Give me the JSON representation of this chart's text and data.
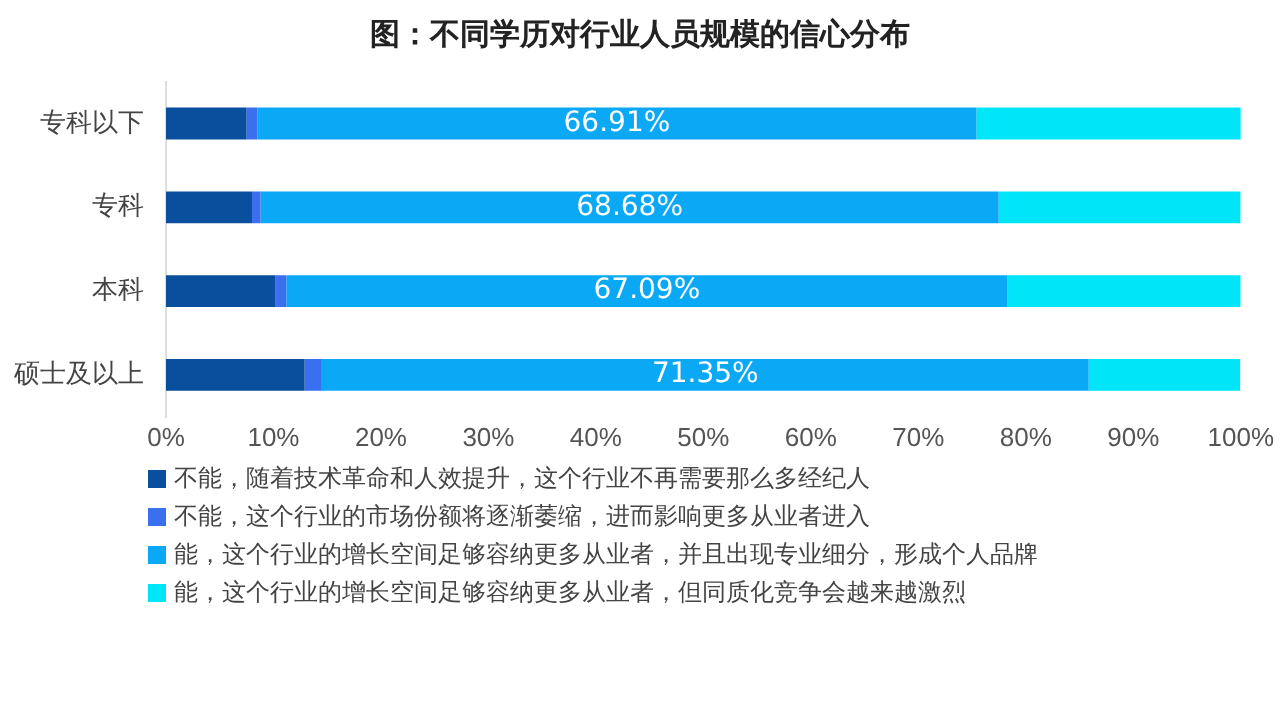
{
  "chart_data": {
    "type": "bar",
    "orientation": "horizontal",
    "stacked": true,
    "title": "图：不同学历对行业人员规模的信心分布",
    "categories": [
      "专科以下",
      "专科",
      "本科",
      "硕士及以上"
    ],
    "series": [
      {
        "name": "不能，随着技术革命和人效提升，这个行业不再需要那么多经纪人",
        "color": "#0a4f9e",
        "values": [
          7.5,
          8.0,
          10.2,
          12.9
        ]
      },
      {
        "name": "不能，这个行业的市场份额将逐渐萎缩，进而影响更多从业者进入",
        "color": "#3a6ff0",
        "values": [
          1.0,
          0.8,
          1.0,
          1.6
        ]
      },
      {
        "name": "能，这个行业的增长空间足够容纳更多从业者，并且出现专业细分，形成个人品牌",
        "color": "#0aa8f5",
        "values": [
          66.91,
          68.68,
          67.09,
          71.35
        ],
        "value_labels": [
          "66.91%",
          "68.68%",
          "67.09%",
          "71.35%"
        ]
      },
      {
        "name": "能，这个行业的增长空间足够容纳更多从业者，但同质化竞争会越来越激烈",
        "color": "#00e5f7",
        "values": [
          24.6,
          22.5,
          21.7,
          14.1
        ]
      }
    ],
    "xlim": [
      0,
      100
    ],
    "xticks": [
      {
        "value": 0,
        "label": "0%"
      },
      {
        "value": 10,
        "label": "10%"
      },
      {
        "value": 20,
        "label": "20%"
      },
      {
        "value": 30,
        "label": "30%"
      },
      {
        "value": 40,
        "label": "40%"
      },
      {
        "value": 50,
        "label": "50%"
      },
      {
        "value": 60,
        "label": "60%"
      },
      {
        "value": 70,
        "label": "70%"
      },
      {
        "value": 80,
        "label": "80%"
      },
      {
        "value": 90,
        "label": "90%"
      },
      {
        "value": 100,
        "label": "100%"
      }
    ],
    "grid": false,
    "legend": "bottom"
  }
}
